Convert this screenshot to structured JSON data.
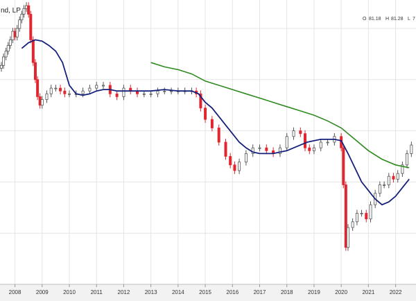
{
  "chart": {
    "title": "nd, LP",
    "ohlc": {
      "o_label": "O",
      "o_value": "81.18",
      "h_label": "H",
      "h_value": "81.28",
      "l_label": "L",
      "l_value": "7"
    }
  },
  "colors": {
    "up": "#555555",
    "down": "#e0262f",
    "ma_short": "#15207a",
    "ma_long": "#2e8b1e",
    "grid": "#e4e4e4",
    "axis_bg": "#f2f2f2"
  },
  "chart_data": {
    "type": "line",
    "title": "nd, LP",
    "x_ticks": [
      "2008",
      "2009",
      "2010",
      "2011",
      "2012",
      "2013",
      "2014",
      "2015",
      "2016",
      "2017",
      "2018",
      "2019",
      "2020",
      "2021",
      "2022"
    ],
    "xlim": [
      2007.45,
      2022.75
    ],
    "ylim": [
      0,
      100
    ],
    "grid": true,
    "legend": "none",
    "series": [
      {
        "role": "price_monthly",
        "x": [
          2007.5,
          2007.58,
          2007.67,
          2007.75,
          2007.83,
          2007.92,
          2008.0,
          2008.08,
          2008.17,
          2008.25,
          2008.33,
          2008.42,
          2008.5,
          2008.58,
          2008.67,
          2008.75,
          2008.83,
          2008.92,
          2009.0,
          2009.17,
          2009.33,
          2009.5,
          2009.67,
          2009.83,
          2010.0,
          2010.25,
          2010.5,
          2010.75,
          2011.0,
          2011.25,
          2011.5,
          2011.75,
          2012.0,
          2012.25,
          2012.5,
          2012.75,
          2013.0,
          2013.25,
          2013.5,
          2013.75,
          2014.0,
          2014.25,
          2014.5,
          2014.67,
          2014.83,
          2015.0,
          2015.25,
          2015.5,
          2015.75,
          2015.92,
          2016.08,
          2016.25,
          2016.5,
          2016.75,
          2017.0,
          2017.25,
          2017.5,
          2017.75,
          2018.0,
          2018.25,
          2018.5,
          2018.67,
          2018.83,
          2019.0,
          2019.25,
          2019.5,
          2019.75,
          2020.0,
          2020.08,
          2020.17,
          2020.25,
          2020.42,
          2020.58,
          2020.75,
          2020.92,
          2021.08,
          2021.25,
          2021.42,
          2021.58,
          2021.75,
          2021.92,
          2022.08,
          2022.25,
          2022.42,
          2022.58
        ],
        "values": [
          77,
          80,
          82,
          84,
          86,
          89,
          87,
          90,
          93,
          95,
          97,
          98,
          95,
          86,
          78,
          72,
          66,
          63,
          65,
          67,
          69,
          69,
          68,
          67,
          67,
          67,
          68,
          69,
          70,
          70,
          67,
          66,
          69,
          68,
          67,
          67,
          67,
          68,
          68,
          68,
          68,
          68,
          68,
          67,
          62,
          58,
          55,
          50,
          45,
          42,
          40,
          43,
          46,
          48,
          48,
          47,
          46,
          48,
          52,
          54,
          53,
          48,
          47,
          48,
          50,
          50,
          52,
          48,
          35,
          13,
          20,
          22,
          25,
          25,
          23,
          28,
          32,
          35,
          35,
          38,
          37,
          39,
          42,
          46,
          49
        ]
      },
      {
        "name": "",
        "role": "moving_average_short",
        "x": [
          2008.25,
          2008.5,
          2008.75,
          2009.0,
          2009.25,
          2009.5,
          2009.75,
          2010.0,
          2010.25,
          2010.5,
          2010.75,
          2011.0,
          2011.25,
          2011.5,
          2011.75,
          2012.0,
          2012.5,
          2013.0,
          2013.5,
          2014.0,
          2014.5,
          2014.75,
          2015.0,
          2015.25,
          2015.5,
          2015.75,
          2016.0,
          2016.25,
          2016.5,
          2016.75,
          2017.0,
          2017.25,
          2017.5,
          2017.75,
          2018.0,
          2018.25,
          2018.5,
          2018.75,
          2019.0,
          2019.25,
          2019.5,
          2019.75,
          2020.0,
          2020.25,
          2020.5,
          2020.75,
          2021.0,
          2021.25,
          2021.5,
          2021.75,
          2022.0,
          2022.25,
          2022.5
        ],
        "values": [
          83,
          85,
          86,
          85.5,
          84,
          82,
          78,
          70,
          67,
          66.5,
          67,
          68,
          68.5,
          68.5,
          68,
          68,
          68,
          68,
          68.5,
          68,
          68,
          67,
          64,
          62,
          59,
          56,
          53,
          50,
          48,
          46.5,
          46,
          46,
          46,
          46.5,
          47,
          48,
          49,
          50,
          50.5,
          51,
          51,
          51,
          50.5,
          46,
          41,
          36,
          33,
          30,
          28,
          29,
          31,
          34,
          37
        ]
      },
      {
        "name": "",
        "role": "moving_average_long",
        "x": [
          2013.0,
          2013.5,
          2014.0,
          2014.5,
          2015.0,
          2015.5,
          2016.0,
          2016.5,
          2017.0,
          2017.5,
          2018.0,
          2018.5,
          2019.0,
          2019.5,
          2020.0,
          2020.5,
          2021.0,
          2021.5,
          2022.0,
          2022.5
        ],
        "values": [
          78,
          76.5,
          75.5,
          74,
          71.5,
          70,
          68.5,
          67,
          65.5,
          64,
          62.5,
          61,
          59.5,
          57.5,
          55,
          51,
          47,
          44,
          42,
          41
        ]
      }
    ]
  }
}
